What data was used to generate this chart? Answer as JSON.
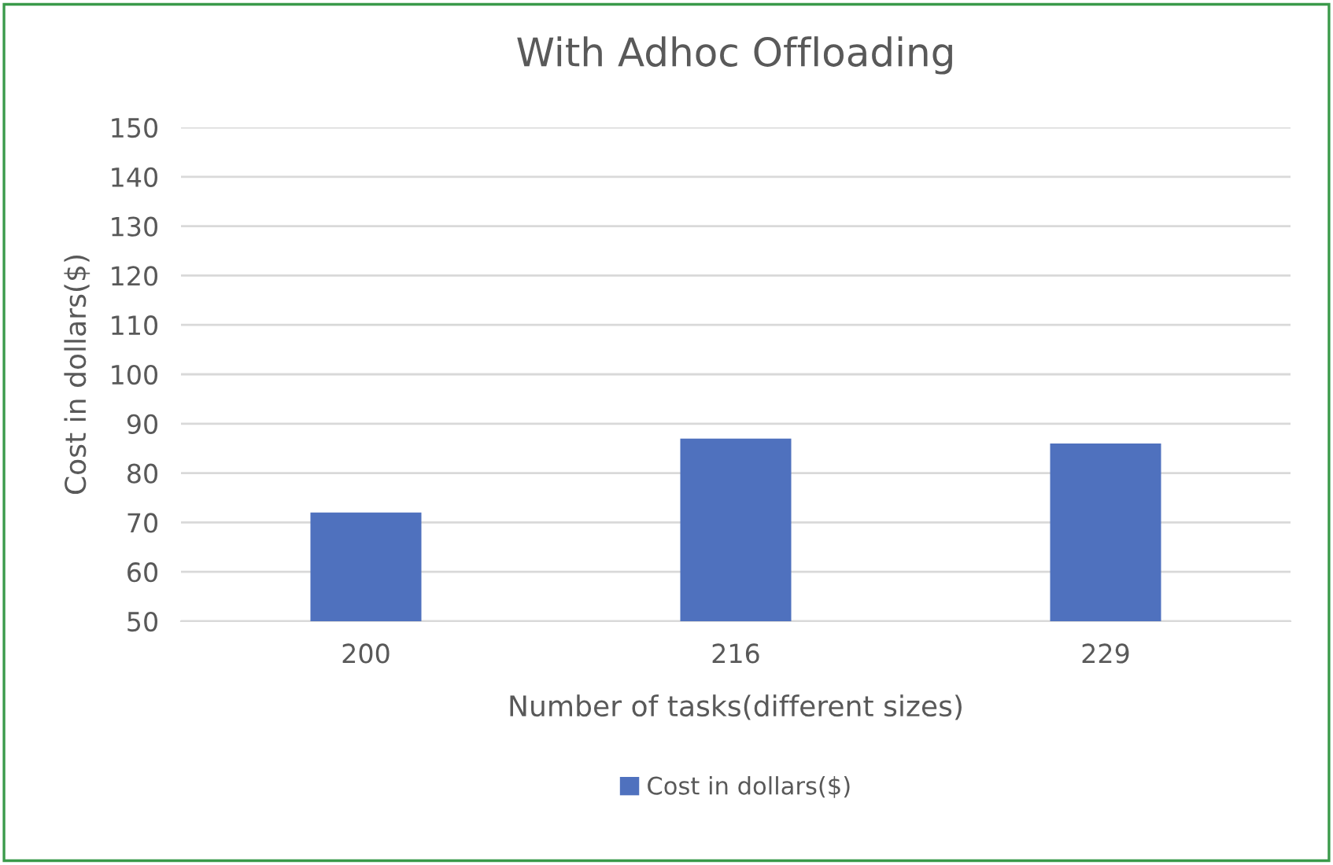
{
  "chart_data": {
    "type": "bar",
    "title": "With Adhoc Offloading",
    "xlabel": "Number of tasks(different sizes)",
    "ylabel": "Cost in dollars($)",
    "categories": [
      "200",
      "216",
      "229"
    ],
    "series": [
      {
        "name": "Cost in dollars($)",
        "color": "#4f71be",
        "values": [
          72,
          87,
          86
        ]
      }
    ],
    "ylim": [
      50,
      150
    ],
    "yticks": [
      50,
      60,
      70,
      80,
      90,
      100,
      110,
      120,
      130,
      140,
      150
    ],
    "grid": "y",
    "legend": "bottom"
  }
}
